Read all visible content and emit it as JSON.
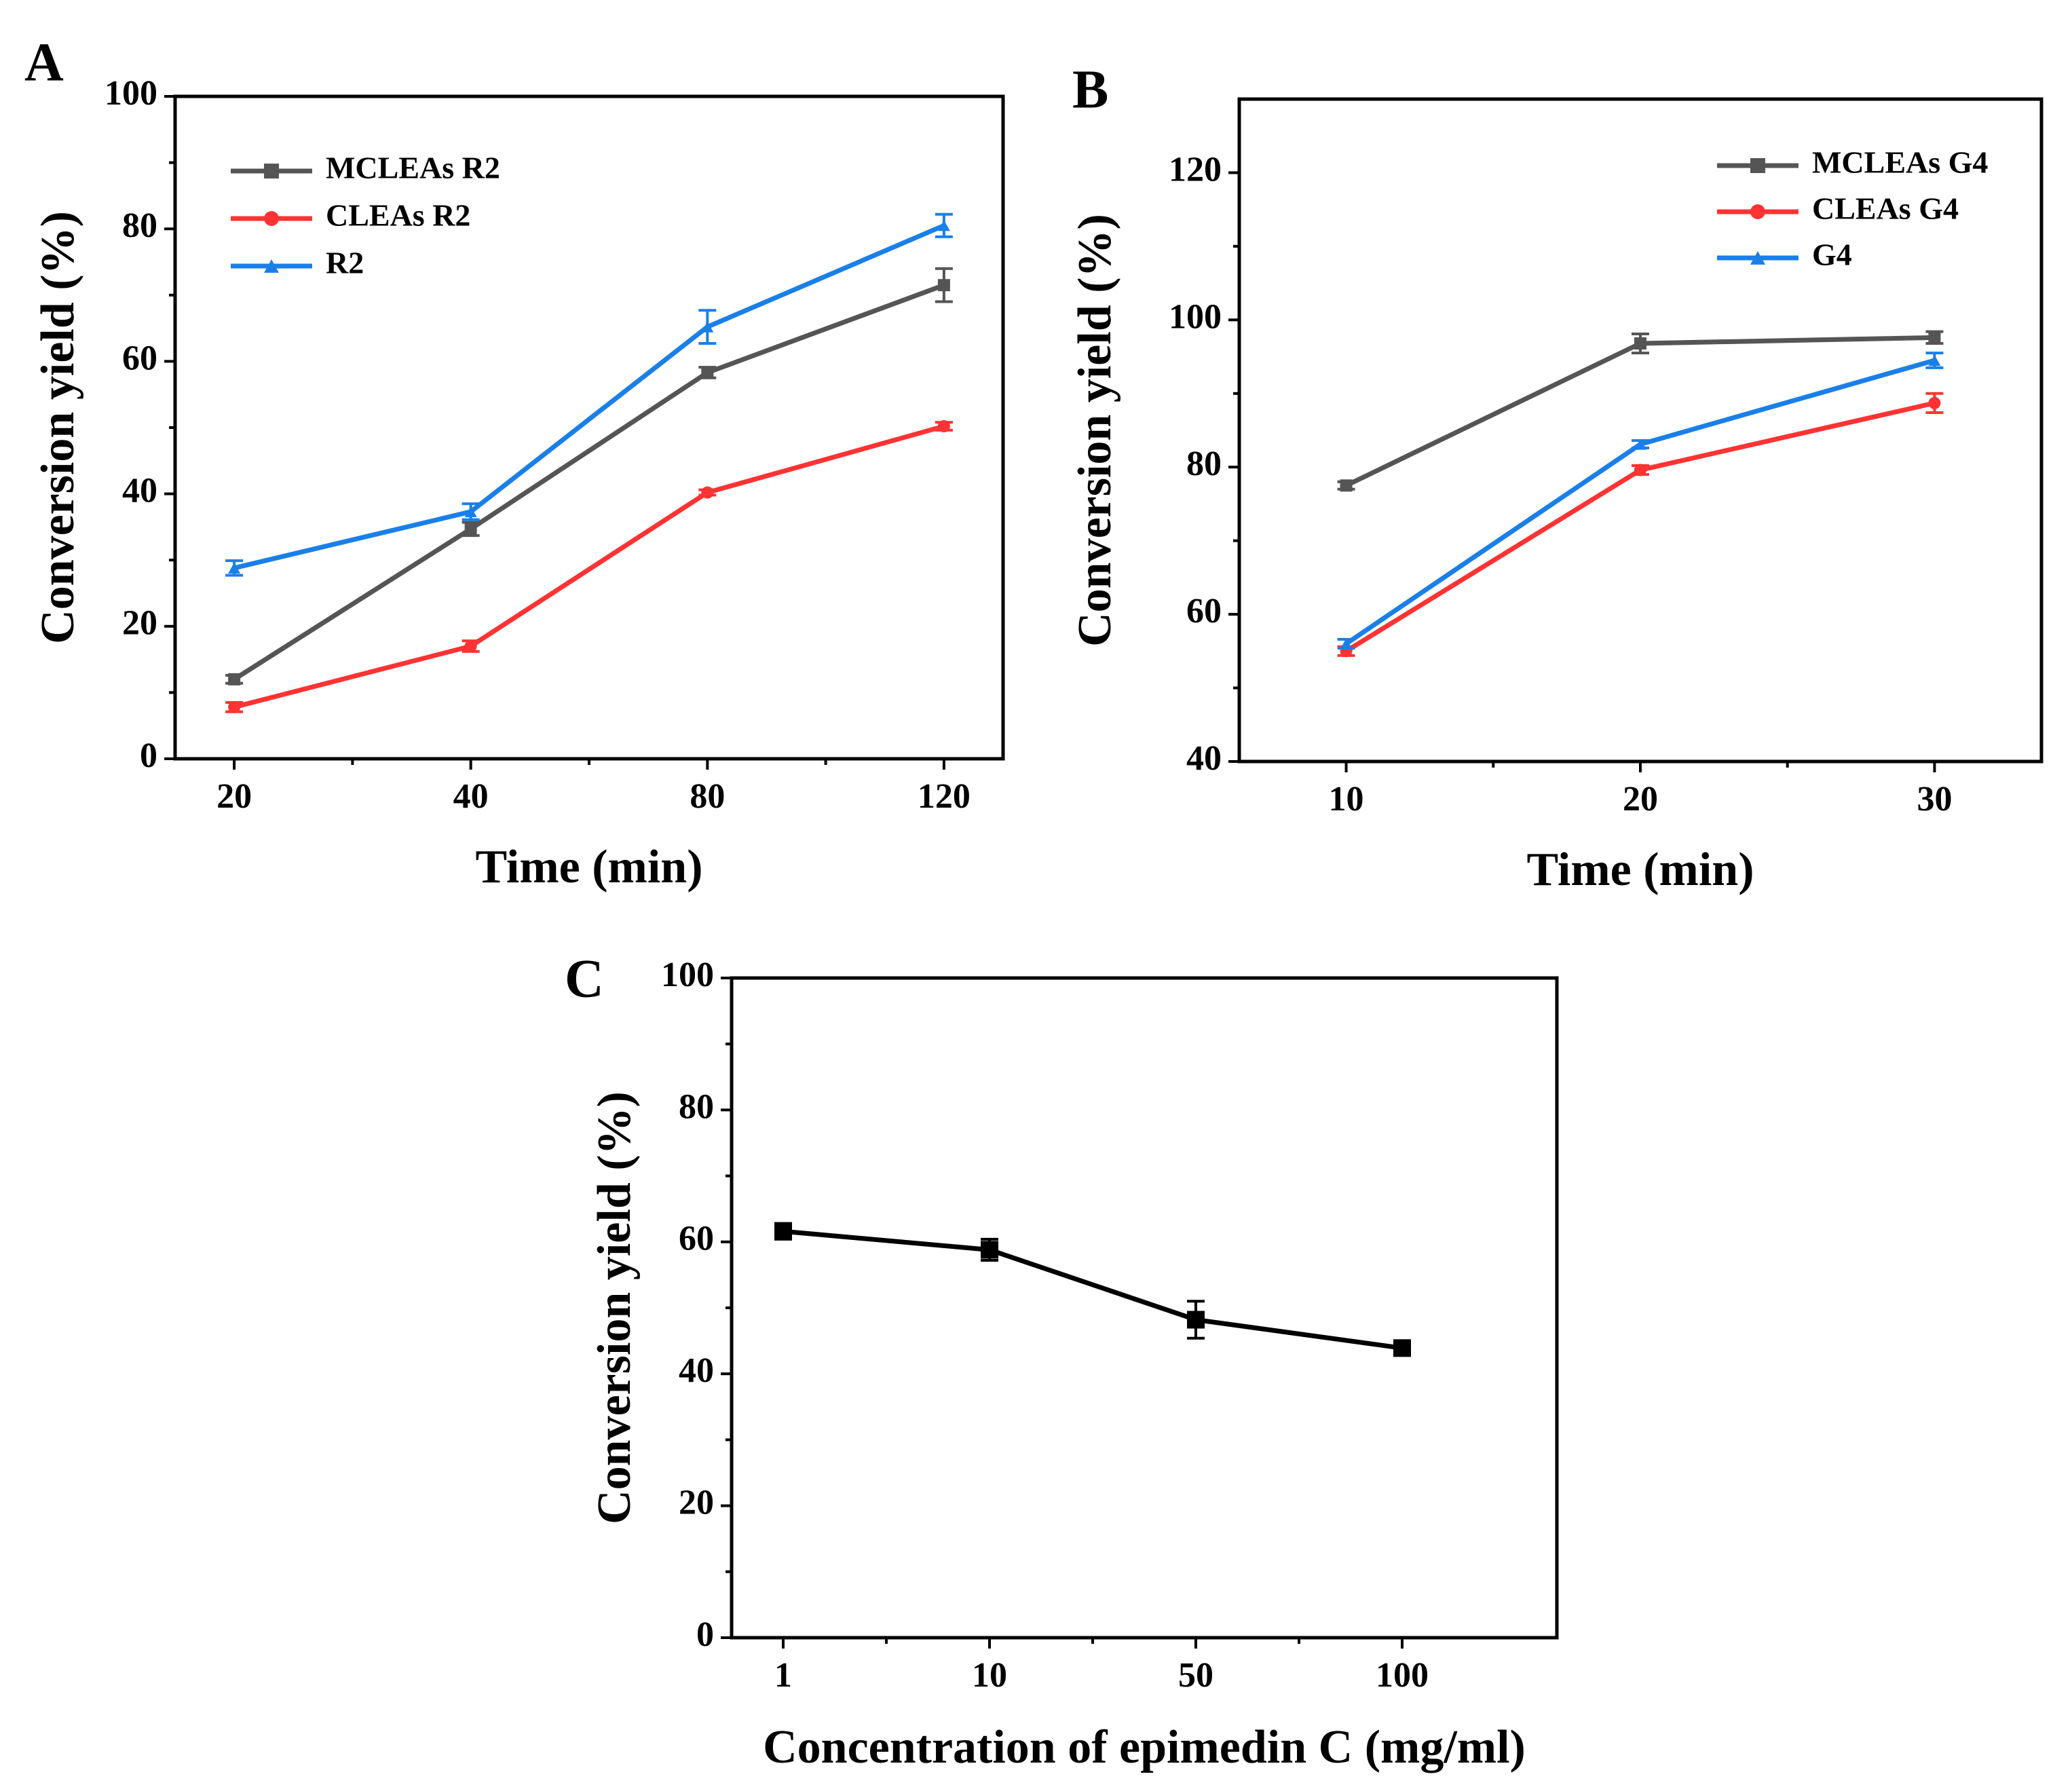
{
  "chart_data": [
    {
      "panel": "A",
      "type": "line",
      "xlabel": "Time (min)",
      "ylabel": "Conversion yield (%)",
      "categories": [
        "20",
        "40",
        "80",
        "120"
      ],
      "ylim": [
        0,
        100
      ],
      "yticks": [
        "0",
        "20",
        "40",
        "60",
        "80",
        "100"
      ],
      "legend_position": "top-left",
      "series": [
        {
          "name": "MCLEAs R2",
          "color": "#555555",
          "marker": "square",
          "values": [
            12,
            34.7,
            58.3,
            71.5
          ],
          "errors": [
            0.6,
            1.0,
            0.8,
            2.5
          ]
        },
        {
          "name": "CLEAs R2",
          "color": "#ff3333",
          "marker": "circle",
          "values": [
            7.8,
            17,
            40.2,
            50.2
          ],
          "errors": [
            0.7,
            0.8,
            0.4,
            0.6
          ]
        },
        {
          "name": "R2",
          "color": "#1a7fe8",
          "marker": "triangle",
          "values": [
            28.8,
            37.3,
            65.2,
            80.5
          ],
          "errors": [
            1.1,
            1.2,
            2.5,
            1.7
          ]
        }
      ]
    },
    {
      "panel": "B",
      "type": "line",
      "xlabel": "Time (min)",
      "ylabel": "Conversion yield (%)",
      "categories": [
        "10",
        "20",
        "30"
      ],
      "ylim": [
        40,
        130
      ],
      "yticks": [
        "40",
        "60",
        "80",
        "100",
        "120"
      ],
      "legend_position": "top-right",
      "series": [
        {
          "name": "MCLEAs G4",
          "color": "#555555",
          "marker": "square",
          "values": [
            77.5,
            96.8,
            97.6
          ],
          "errors": [
            0.5,
            1.3,
            0.8
          ]
        },
        {
          "name": "CLEAs G4",
          "color": "#ff3333",
          "marker": "circle",
          "values": [
            55,
            79.6,
            88.7
          ],
          "errors": [
            0.6,
            0.6,
            1.3
          ]
        },
        {
          "name": "G4",
          "color": "#1a7fe8",
          "marker": "triangle",
          "values": [
            56,
            83.1,
            94.5
          ],
          "errors": [
            0.6,
            0.5,
            1.0
          ]
        }
      ]
    },
    {
      "panel": "C",
      "type": "line",
      "xlabel": "Concentration of epimedin C (mg/ml)",
      "ylabel": "Conversion yield (%)",
      "categories": [
        "1",
        "10",
        "50",
        "100"
      ],
      "ylim": [
        0,
        100
      ],
      "yticks": [
        "0",
        "20",
        "40",
        "60",
        "80",
        "100"
      ],
      "series": [
        {
          "name": "epimedin C",
          "color": "#000000",
          "marker": "square",
          "values": [
            61.6,
            58.8,
            48.2,
            43.9
          ],
          "errors": [
            1.2,
            1.6,
            2.8,
            0.6
          ]
        }
      ]
    }
  ]
}
